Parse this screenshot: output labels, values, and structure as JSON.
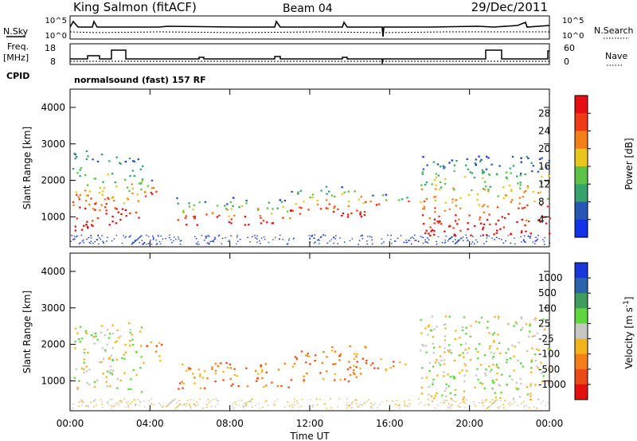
{
  "header": {
    "station": "King Salmon (fitACF)",
    "beam": "Beam 04",
    "date": "29/Dec/2011"
  },
  "top_panels": {
    "nsky_label": "N.Sky",
    "nsky_ticks": [
      "10^5",
      "10^0"
    ],
    "nsearch_label": "N.Search",
    "nsearch_ticks": [
      "10^5",
      "10^0"
    ],
    "freq_label": "Freq.",
    "freq_unit": "[MHz]",
    "freq_ticks": [
      "18",
      "8"
    ],
    "nave_label": "Nave",
    "nave_ticks": [
      "60",
      "0"
    ],
    "cpid_label": "CPID",
    "cpid_text": "normalsound (fast) 157 RF"
  },
  "chart_data": [
    {
      "type": "heatmap",
      "panel": "power",
      "ylabel": "Slant Range [km]",
      "yticks": [
        1000,
        2000,
        3000,
        4000
      ],
      "ylim": [
        180,
        4500
      ],
      "xlim": [
        0,
        24
      ],
      "xticks": [
        "00:00",
        "04:00",
        "08:00",
        "12:00",
        "16:00",
        "20:00",
        "00:00"
      ],
      "colorbar": {
        "label": "Power [dB]",
        "ticks": [
          "4",
          "8",
          "12",
          "16",
          "20",
          "24",
          "28"
        ],
        "colors": [
          "#1533e6",
          "#2856b5",
          "#35a36b",
          "#5fc248",
          "#e8c51f",
          "#f27f1a",
          "#ee3d16",
          "#e50e12"
        ]
      },
      "echo_regions": [
        {
          "t0": 0.1,
          "t1": 1.6,
          "r0": 600,
          "r1": 2900
        },
        {
          "t0": 1.6,
          "t1": 3.6,
          "r0": 800,
          "r1": 2700
        },
        {
          "t0": 3.6,
          "t1": 4.6,
          "r0": 1500,
          "r1": 2100
        },
        {
          "t0": 5.3,
          "t1": 8.9,
          "r0": 800,
          "r1": 1550
        },
        {
          "t0": 9.2,
          "t1": 11.0,
          "r0": 800,
          "r1": 1500
        },
        {
          "t0": 11.0,
          "t1": 14.8,
          "r0": 1000,
          "r1": 1900
        },
        {
          "t0": 15.0,
          "t1": 16.2,
          "r0": 1300,
          "r1": 1650
        },
        {
          "t0": 16.4,
          "t1": 17.1,
          "r0": 1300,
          "r1": 1600
        },
        {
          "t0": 17.5,
          "t1": 24.0,
          "r0": 500,
          "r1": 2700
        }
      ]
    },
    {
      "type": "heatmap",
      "panel": "velocity",
      "ylabel": "Slant Range [km]",
      "yticks": [
        1000,
        2000,
        3000,
        4000
      ],
      "ylim": [
        180,
        4500
      ],
      "xlim": [
        0,
        24
      ],
      "xticks": [
        "00:00",
        "04:00",
        "08:00",
        "12:00",
        "16:00",
        "20:00",
        "00:00"
      ],
      "xlabel": "Time UT",
      "colorbar": {
        "label": "Velocity [m s",
        "label_exp": "-1",
        "label_close": "]",
        "ticks": [
          "1000",
          "500",
          "100",
          "25",
          "-25",
          "-100",
          "-500",
          "-1000"
        ],
        "colors": [
          "#1a36d9",
          "#2a64ad",
          "#3f9c5c",
          "#5fd640",
          "#c7c6c2",
          "#f2b31c",
          "#f27f1a",
          "#ea4a16",
          "#e2100e"
        ]
      },
      "echo_regions": [
        {
          "t0": 0.1,
          "t1": 3.6,
          "r0": 700,
          "r1": 2600
        },
        {
          "t0": 3.6,
          "t1": 4.6,
          "r0": 1500,
          "r1": 2100
        },
        {
          "t0": 5.3,
          "t1": 8.9,
          "r0": 800,
          "r1": 1550
        },
        {
          "t0": 9.2,
          "t1": 11.0,
          "r0": 800,
          "r1": 1500
        },
        {
          "t0": 11.0,
          "t1": 14.8,
          "r0": 1000,
          "r1": 2000
        },
        {
          "t0": 15.0,
          "t1": 17.1,
          "r0": 1300,
          "r1": 1650
        },
        {
          "t0": 17.5,
          "t1": 24.0,
          "r0": 500,
          "r1": 2800
        }
      ]
    }
  ]
}
